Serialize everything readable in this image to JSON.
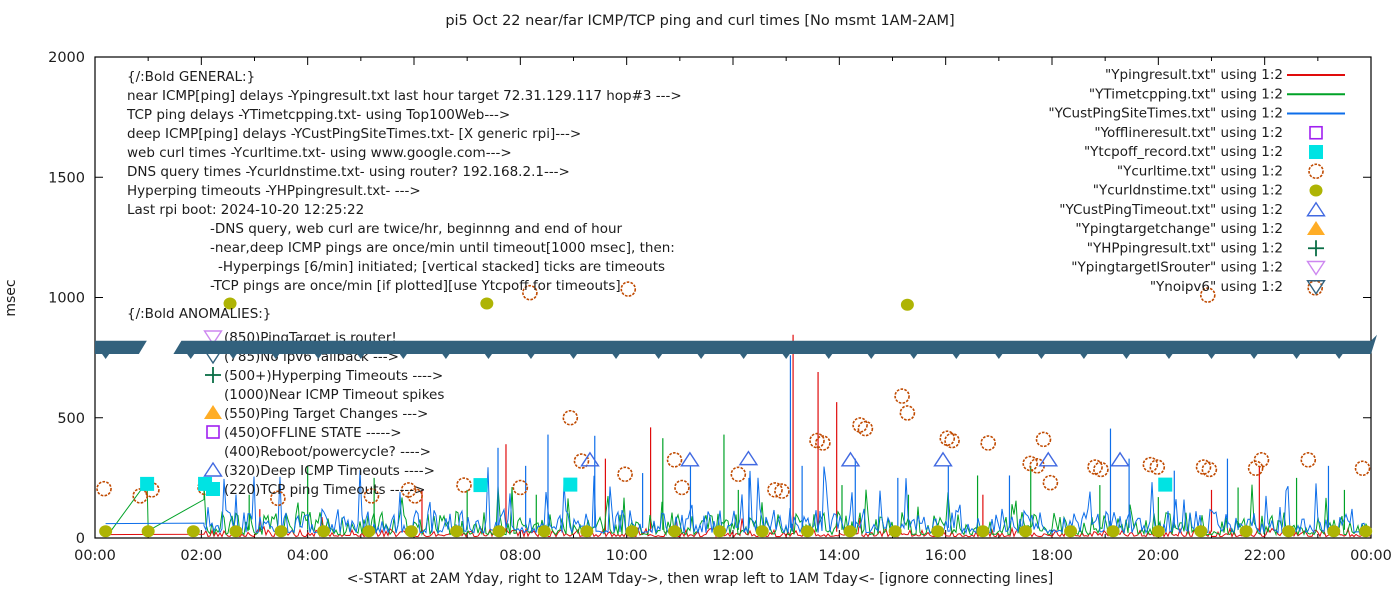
{
  "title": "pi5 Oct 22  near/far ICMP/TCP ping and curl times [No msmt 1AM-2AM]",
  "chart_data": {
    "type": "line",
    "title": "pi5 Oct 22  near/far ICMP/TCP ping and curl times [No msmt 1AM-2AM]",
    "xlabel": "<-START at 2AM Yday, right to 12AM Tday->, then wrap left to 1AM Tday<- [ignore connecting lines]",
    "ylabel": "msec",
    "ylim": [
      0,
      2000
    ],
    "y_ticks": [
      0,
      500,
      1000,
      1500,
      2000
    ],
    "x_ticks": [
      "00:00",
      "02:00",
      "04:00",
      "06:00",
      "08:00",
      "10:00",
      "12:00",
      "14:00",
      "16:00",
      "18:00",
      "20:00",
      "22:00",
      "00:00"
    ],
    "x_hours_span": 24,
    "grid": false,
    "legend_position": "outside-top-right",
    "legend": [
      {
        "label": "\"Ypingresult.txt\" using 1:2",
        "marker": "line",
        "color": "#e00c0c"
      },
      {
        "label": "\"YTimetcpping.txt\" using 1:2",
        "marker": "line",
        "color": "#00a227"
      },
      {
        "label": "\"YCustPingSiteTimes.txt\" using 1:2",
        "marker": "line",
        "color": "#0d6eea"
      },
      {
        "label": "\"Yofflineresult.txt\" using 1:2",
        "marker": "square-open",
        "color": "#a020f0"
      },
      {
        "label": "\"Ytcpoff_record.txt\" using 1:2",
        "marker": "square-filled",
        "color": "#00e3e3"
      },
      {
        "label": "\"Ycurltime.txt\" using 1:2",
        "marker": "circle-open",
        "color": "#c04a00"
      },
      {
        "label": "\"Ycurldnstime.txt\" using 1:2",
        "marker": "circle-filled",
        "color": "#aeb404"
      },
      {
        "label": "\"YCustPingTimeout.txt\" using 1:2",
        "marker": "triangle-up-open",
        "color": "#4169e1"
      },
      {
        "label": "\"Ypingtargetchange\" using 1:2",
        "marker": "triangle-up-filled",
        "color": "#ffad26"
      },
      {
        "label": "\"YHPpingresult.txt\" using 1:2",
        "marker": "plus",
        "color": "#0a6e46"
      },
      {
        "label": "\"YpingtargetISrouter\" using 1:2",
        "marker": "triangle-down-open",
        "color": "#cd87f0"
      },
      {
        "label": "\"Ynoipv6\" using 1:2",
        "marker": "triangle-down-open",
        "color": "#32617d"
      }
    ],
    "annotations_general": [
      {
        "indent": 0,
        "text": "{/:Bold GENERAL:}"
      },
      {
        "indent": 0,
        "text": "near ICMP[ping] delays -Ypingresult.txt last hour target 72.31.129.117 hop#3 --->"
      },
      {
        "indent": 0,
        "text": "TCP ping delays -YTimetcpping.txt- using Top100Web--->"
      },
      {
        "indent": 0,
        "text": "deep ICMP[ping] delays -YCustPingSiteTimes.txt- [X generic rpi]--->"
      },
      {
        "indent": 0,
        "text": "web curl times -Ycurltime.txt- using www.google.com--->"
      },
      {
        "indent": 0,
        "text": "DNS query times -Ycurldnstime.txt- using router? 192.168.2.1--->"
      },
      {
        "indent": 0,
        "text": "Hyperping timeouts -YHPpingresult.txt- --->"
      },
      {
        "indent": 0,
        "text": "Last rpi boot: 2024-10-20 12:25:22"
      },
      {
        "indent": 1,
        "text": "-DNS query, web curl are twice/hr, beginnng and end of hour"
      },
      {
        "indent": 1,
        "text": "-near,deep ICMP pings are once/min until timeout[1000 msec], then:"
      },
      {
        "indent": 2,
        "text": "-Hyperpings [6/min] initiated; [vertical stacked] ticks are timeouts"
      },
      {
        "indent": 1,
        "text": "-TCP pings are once/min [if plotted][use Ytcpoff for timeouts]"
      }
    ],
    "annotations_anomalies_header": "{/:Bold ANOMALIES:}",
    "annotations_anomalies": [
      {
        "marker": "triangle-down-open",
        "color": "#cd87f0",
        "text": "(850)PingTarget is router!"
      },
      {
        "marker": "triangle-down-open",
        "color": "#32617d",
        "text": "(785)No ipv6 fallback --->",
        "behind_band": true
      },
      {
        "marker": "plus",
        "color": "#0a6e46",
        "text": "(500+)Hyperping Timeouts ---->"
      },
      {
        "marker": null,
        "color": null,
        "text": "(1000)Near ICMP Timeout spikes"
      },
      {
        "marker": "triangle-up-filled",
        "color": "#ffad26",
        "text": "(550)Ping Target Changes --->"
      },
      {
        "marker": "square-open",
        "color": "#a020f0",
        "text": "(450)OFFLINE STATE ----->"
      },
      {
        "marker": null,
        "color": null,
        "text": "(400)Reboot/powercycle? ---->"
      },
      {
        "marker": "triangle-up-open",
        "color": "#4169e1",
        "text": "(320)Deep ICMP Timeouts ---->"
      },
      {
        "marker": "square-filled",
        "color": "#00e3e3",
        "text": "(220)TCP ping Timeouts ----->"
      }
    ],
    "series": {
      "near_icmp_red": {
        "name": "Ypingresult.txt",
        "color": "#e00c0c",
        "pre_segment": [
          [
            0.15,
            14
          ],
          [
            2.05,
            16
          ]
        ],
        "noise": {
          "seed": 42,
          "base": 6,
          "amp": 34,
          "spike_prob": 0.02,
          "spike_max": 110
        },
        "spikes": [
          [
            3.1,
            120
          ],
          [
            6.15,
            200
          ],
          [
            7.73,
            390
          ],
          [
            9.6,
            330
          ],
          [
            10.45,
            460
          ],
          [
            13.13,
            845
          ],
          [
            13.6,
            690
          ],
          [
            13.95,
            565
          ],
          [
            16.7,
            180
          ],
          [
            21.0,
            200
          ],
          [
            21.9,
            300
          ]
        ]
      },
      "tcp_ping_green": {
        "name": "YTimetcpping.txt",
        "color": "#00a227",
        "pre_segment": [
          [
            0.3,
            30
          ],
          [
            0.98,
            235
          ],
          [
            1.0,
            30
          ],
          [
            2.05,
            160
          ]
        ],
        "noise": {
          "seed": 7,
          "base": 14,
          "amp": 95,
          "spike_prob": 0.07,
          "spike_max": 215
        },
        "spikes": [
          [
            2.9,
            180
          ],
          [
            4.0,
            300
          ],
          [
            5.25,
            250
          ],
          [
            7.0,
            200
          ],
          [
            8.3,
            180
          ],
          [
            10.68,
            415
          ],
          [
            11.83,
            430
          ],
          [
            12.1,
            200
          ],
          [
            14.05,
            220
          ],
          [
            15.3,
            180
          ],
          [
            16.6,
            260
          ],
          [
            17.6,
            300
          ],
          [
            18.9,
            220
          ],
          [
            20.0,
            170
          ],
          [
            21.5,
            210
          ],
          [
            22.6,
            250
          ],
          [
            23.5,
            200
          ]
        ]
      },
      "deep_icmp_blue": {
        "name": "YCustPingSiteTimes.txt",
        "color": "#0d6eea",
        "pre_segment": [
          [
            0.2,
            60
          ],
          [
            2.05,
            62
          ]
        ],
        "noise": {
          "seed": 13,
          "base": 22,
          "amp": 100,
          "spike_prob": 0.11,
          "spike_max": 300
        },
        "spikes": [
          [
            7.58,
            375
          ],
          [
            8.1,
            300
          ],
          [
            8.52,
            430
          ],
          [
            9.4,
            425
          ],
          [
            10.3,
            270
          ],
          [
            11.2,
            300
          ],
          [
            12.3,
            250
          ],
          [
            13.08,
            760
          ],
          [
            13.3,
            300
          ],
          [
            14.3,
            330
          ],
          [
            15.1,
            250
          ],
          [
            16.05,
            300
          ],
          [
            17.2,
            260
          ],
          [
            19.1,
            455
          ],
          [
            19.45,
            330
          ],
          [
            20.3,
            280
          ],
          [
            21.3,
            330
          ],
          [
            23.2,
            300
          ]
        ]
      },
      "curl_circles": {
        "name": "Ycurltime.txt",
        "color": "#c04a00",
        "marker": "circle-open",
        "points": [
          [
            0.17,
            205
          ],
          [
            0.85,
            175
          ],
          [
            1.07,
            200
          ],
          [
            2.07,
            210
          ],
          [
            3.44,
            165
          ],
          [
            5.2,
            175
          ],
          [
            5.9,
            200
          ],
          [
            6.02,
            175
          ],
          [
            6.94,
            220
          ],
          [
            8.0,
            210
          ],
          [
            8.18,
            1020
          ],
          [
            8.94,
            500
          ],
          [
            9.15,
            320
          ],
          [
            9.97,
            265
          ],
          [
            10.03,
            1035
          ],
          [
            10.9,
            325
          ],
          [
            11.04,
            210
          ],
          [
            12.1,
            265
          ],
          [
            12.79,
            200
          ],
          [
            12.92,
            195
          ],
          [
            13.58,
            405
          ],
          [
            13.69,
            395
          ],
          [
            14.39,
            470
          ],
          [
            14.49,
            455
          ],
          [
            15.18,
            590
          ],
          [
            15.28,
            520
          ],
          [
            16.03,
            415
          ],
          [
            16.12,
            405
          ],
          [
            16.8,
            395
          ],
          [
            17.59,
            310
          ],
          [
            17.72,
            300
          ],
          [
            17.84,
            410
          ],
          [
            17.97,
            230
          ],
          [
            18.81,
            295
          ],
          [
            18.92,
            285
          ],
          [
            19.85,
            305
          ],
          [
            19.98,
            295
          ],
          [
            20.85,
            295
          ],
          [
            20.93,
            1010
          ],
          [
            20.96,
            285
          ],
          [
            21.83,
            290
          ],
          [
            21.94,
            325
          ],
          [
            22.82,
            325
          ],
          [
            22.95,
            1040
          ],
          [
            23.84,
            290
          ]
        ]
      },
      "dns_olive": {
        "name": "Ycurldnstime.txt",
        "color": "#aeb404",
        "marker": "circle-filled",
        "points": [
          [
            2.54,
            975
          ],
          [
            7.37,
            975
          ],
          [
            15.28,
            970
          ],
          [
            0.2,
            28
          ],
          [
            1.0,
            28
          ],
          [
            1.85,
            28
          ],
          [
            2.65,
            28
          ],
          [
            3.5,
            28
          ],
          [
            4.3,
            28
          ],
          [
            5.15,
            28
          ],
          [
            5.95,
            28
          ],
          [
            6.8,
            28
          ],
          [
            7.6,
            28
          ],
          [
            8.45,
            28
          ],
          [
            9.25,
            28
          ],
          [
            10.1,
            28
          ],
          [
            10.9,
            28
          ],
          [
            11.75,
            28
          ],
          [
            12.55,
            28
          ],
          [
            13.4,
            28
          ],
          [
            14.2,
            28
          ],
          [
            15.05,
            28
          ],
          [
            15.85,
            28
          ],
          [
            16.7,
            28
          ],
          [
            17.5,
            28
          ],
          [
            18.35,
            28
          ],
          [
            19.15,
            28
          ],
          [
            20.0,
            28
          ],
          [
            20.8,
            28
          ],
          [
            21.65,
            28
          ],
          [
            22.45,
            28
          ],
          [
            23.3,
            28
          ],
          [
            23.9,
            28
          ]
        ]
      },
      "tcpoff_squares": {
        "name": "Ytcpoff_record.txt",
        "color": "#00e3e3",
        "marker": "square-filled",
        "points": [
          [
            0.98,
            225
          ],
          [
            2.07,
            225
          ],
          [
            7.25,
            220
          ],
          [
            8.94,
            222
          ],
          [
            20.13,
            222
          ]
        ]
      },
      "deep_timeout_triangles": {
        "name": "YCustPingTimeout.txt",
        "color": "#4169e1",
        "marker": "triangle-up-open",
        "points": [
          [
            9.31,
            325
          ],
          [
            11.19,
            325
          ],
          [
            12.29,
            330
          ],
          [
            14.21,
            325
          ],
          [
            15.95,
            325
          ],
          [
            17.93,
            325
          ],
          [
            19.28,
            325
          ]
        ]
      },
      "noipv6_band": {
        "name": "Ynoipv6",
        "color": "#32617d",
        "value_range_msec": [
          765,
          820
        ],
        "gap_hours": [
          0.9,
          1.55
        ],
        "note": "dense down-triangle markers forming a solid band; gap = no msmt 1AM-2AM"
      }
    }
  }
}
